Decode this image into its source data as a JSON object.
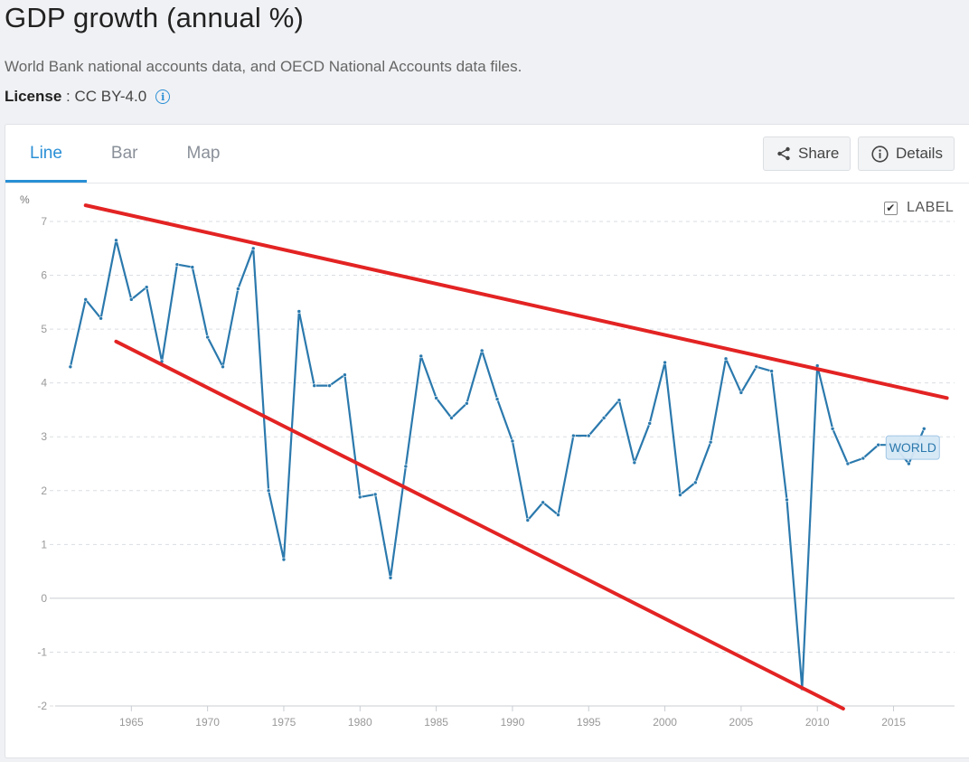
{
  "header": {
    "title": "GDP growth (annual %)",
    "source": "World Bank national accounts data, and OECD National Accounts data files.",
    "license_label": "License",
    "license_sep": " : ",
    "license_value": "CC BY-4.0",
    "info_icon": "i"
  },
  "tabs": [
    {
      "label": "Line",
      "active": true
    },
    {
      "label": "Bar",
      "active": false
    },
    {
      "label": "Map",
      "active": false
    }
  ],
  "toolbar": {
    "share_label": "Share",
    "details_label": "Details"
  },
  "label_toggle": {
    "text": "LABEL",
    "checked": true,
    "check_glyph": "✔"
  },
  "colors": {
    "accent": "#2a8fd6",
    "series": "#2b79ad",
    "trend": "#e32323",
    "grid": "#d9dde2",
    "axis_text": "#999999"
  },
  "chart_data": {
    "type": "line",
    "ylabel": "%",
    "xlim": [
      1960,
      2019
    ],
    "ylim": [
      -2,
      7
    ],
    "yticks": [
      7,
      6,
      5,
      4,
      3,
      2,
      1,
      0,
      -1,
      -2
    ],
    "xticks": [
      1965,
      1970,
      1975,
      1980,
      1985,
      1990,
      1995,
      2000,
      2005,
      2010,
      2015
    ],
    "grid": true,
    "series": [
      {
        "name": "WORLD",
        "x": [
          1961,
          1962,
          1963,
          1964,
          1965,
          1966,
          1967,
          1968,
          1969,
          1970,
          1971,
          1972,
          1973,
          1974,
          1975,
          1976,
          1977,
          1978,
          1979,
          1980,
          1981,
          1982,
          1983,
          1984,
          1985,
          1986,
          1987,
          1988,
          1989,
          1990,
          1991,
          1992,
          1993,
          1994,
          1995,
          1996,
          1997,
          1998,
          1999,
          2000,
          2001,
          2002,
          2003,
          2004,
          2005,
          2006,
          2007,
          2008,
          2009,
          2010,
          2011,
          2012,
          2013,
          2014,
          2015,
          2016,
          2017
        ],
        "values": [
          4.3,
          5.55,
          5.2,
          6.65,
          5.55,
          5.78,
          4.4,
          6.2,
          6.15,
          4.85,
          4.3,
          5.75,
          6.5,
          2.0,
          0.72,
          5.33,
          3.95,
          3.95,
          4.15,
          1.88,
          1.93,
          0.38,
          2.45,
          4.5,
          3.72,
          3.35,
          3.62,
          4.6,
          3.7,
          2.92,
          1.45,
          1.78,
          1.55,
          3.02,
          3.02,
          3.35,
          3.68,
          2.52,
          3.25,
          4.38,
          1.92,
          2.15,
          2.9,
          4.45,
          3.82,
          4.3,
          4.22,
          1.83,
          -1.68,
          4.32,
          3.15,
          2.5,
          2.6,
          2.85,
          2.85,
          2.5,
          3.15
        ],
        "label": "WORLD"
      }
    ],
    "annotations": [
      {
        "type": "trendline",
        "from": [
          1962,
          7.3
        ],
        "to": [
          2018.5,
          3.72
        ]
      },
      {
        "type": "trendline",
        "from": [
          1964,
          4.77
        ],
        "to": [
          2011.7,
          -2.05
        ]
      }
    ]
  }
}
